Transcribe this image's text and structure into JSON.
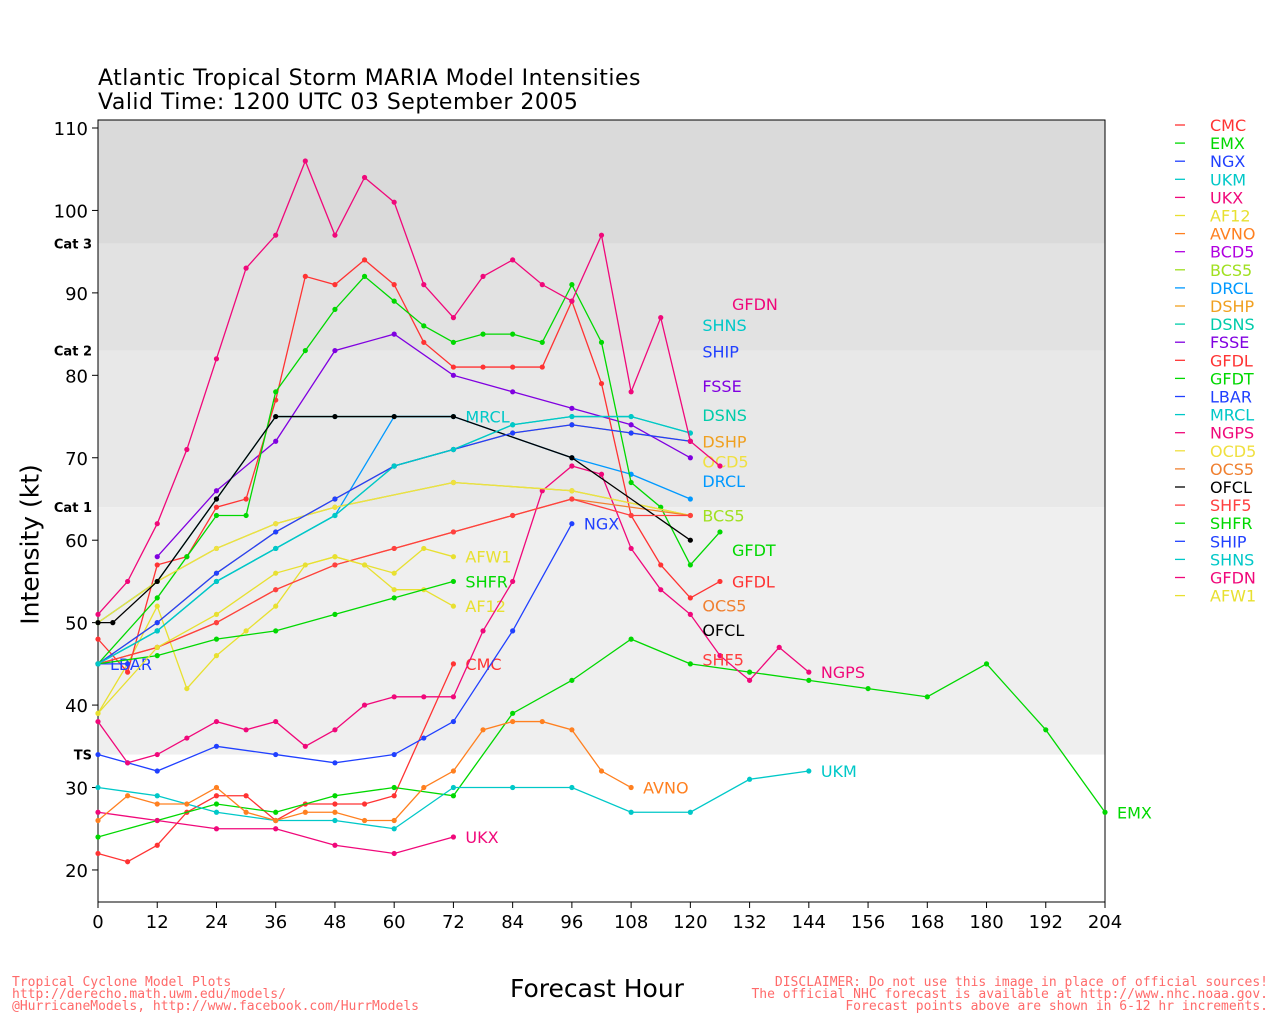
{
  "chart_data": {
    "type": "line",
    "title": "Atlantic Tropical Storm MARIA Model Intensities",
    "subtitle": "Valid Time: 1200 UTC 03 September 2005",
    "xlabel": "Forecast Hour",
    "ylabel": "Intensity (kt)",
    "xlim": [
      0,
      204
    ],
    "ylim": [
      16,
      110
    ],
    "xticks": [
      0,
      12,
      24,
      36,
      48,
      60,
      72,
      84,
      96,
      108,
      120,
      132,
      144,
      156,
      168,
      180,
      192,
      204
    ],
    "yticks": [
      20,
      30,
      40,
      50,
      60,
      70,
      80,
      90,
      100,
      110
    ],
    "category_bands": [
      {
        "label": "TS",
        "kt": 34
      },
      {
        "label": "Cat 1",
        "kt": 64
      },
      {
        "label": "Cat 2",
        "kt": 83
      },
      {
        "label": "Cat 3",
        "kt": 96
      }
    ],
    "series": [
      {
        "name": "CMC",
        "color": "#ff3333",
        "x": [
          0,
          6,
          12,
          18,
          24,
          30,
          36,
          42,
          48,
          54,
          60,
          72
        ],
        "y": [
          22,
          21,
          23,
          27,
          29,
          29,
          26,
          28,
          28,
          28,
          29,
          45
        ]
      },
      {
        "name": "EMX",
        "color": "#00d800",
        "x": [
          0,
          12,
          24,
          36,
          48,
          60,
          72,
          84,
          96,
          108,
          120,
          132,
          144,
          156,
          168,
          180,
          192,
          204
        ],
        "y": [
          24,
          26,
          28,
          27,
          29,
          30,
          29,
          39,
          43,
          48,
          45,
          44,
          43,
          42,
          41,
          45,
          37,
          27
        ]
      },
      {
        "name": "NGX",
        "color": "#2040ff",
        "x": [
          0,
          6,
          12,
          24,
          36,
          48,
          60,
          66,
          72,
          84,
          96
        ],
        "y": [
          34,
          33,
          32,
          35,
          34,
          33,
          34,
          36,
          38,
          49,
          62
        ]
      },
      {
        "name": "UKM",
        "color": "#00c8c8",
        "x": [
          0,
          12,
          24,
          36,
          48,
          60,
          72,
          84,
          96,
          108,
          120,
          132,
          144
        ],
        "y": [
          30,
          29,
          27,
          26,
          26,
          25,
          30,
          30,
          30,
          27,
          27,
          31,
          32
        ]
      },
      {
        "name": "UKX",
        "color": "#f0087a",
        "x": [
          0,
          12,
          24,
          36,
          48,
          60,
          72
        ],
        "y": [
          27,
          26,
          25,
          25,
          23,
          22,
          24
        ]
      },
      {
        "name": "AF12",
        "color": "#e8e030",
        "x": [
          0,
          6,
          12,
          18,
          24,
          30,
          36,
          42,
          48,
          54,
          60,
          66,
          72
        ],
        "y": [
          39,
          45,
          52,
          42,
          46,
          49,
          52,
          57,
          58,
          57,
          54,
          54,
          52
        ]
      },
      {
        "name": "AVNO",
        "color": "#ff8020",
        "x": [
          0,
          6,
          12,
          18,
          24,
          30,
          36,
          42,
          48,
          54,
          60,
          66,
          72,
          78,
          84,
          90,
          96,
          102,
          108
        ],
        "y": [
          26,
          29,
          28,
          28,
          30,
          27,
          26,
          27,
          27,
          26,
          26,
          30,
          32,
          37,
          38,
          38,
          37,
          32,
          30
        ]
      },
      {
        "name": "BCD5",
        "color": "#b000e0",
        "x": [],
        "y": []
      },
      {
        "name": "BCS5",
        "color": "#a0e020",
        "x": [
          0,
          12,
          24,
          36,
          48,
          72,
          96,
          120
        ],
        "y": [
          50,
          55,
          59,
          62,
          64,
          67,
          66,
          63
        ]
      },
      {
        "name": "DRCL",
        "color": "#0099ff",
        "x": [
          0,
          12,
          24,
          36,
          48,
          60,
          72,
          96,
          108,
          120
        ],
        "y": [
          45,
          49,
          55,
          59,
          63,
          75,
          75,
          70,
          68,
          65
        ]
      },
      {
        "name": "DSHP",
        "color": "#f0a020",
        "x": [
          0,
          12,
          24,
          36,
          48,
          60,
          72,
          84,
          96,
          108,
          120
        ],
        "y": [
          45,
          50,
          56,
          61,
          65,
          69,
          71,
          73,
          74,
          73,
          72
        ]
      },
      {
        "name": "DSNS",
        "color": "#00ccaa",
        "x": [
          0,
          12,
          24,
          36,
          48,
          60,
          72,
          84,
          96,
          108,
          120
        ],
        "y": [
          45,
          49,
          55,
          59,
          63,
          69,
          71,
          74,
          75,
          75,
          73
        ]
      },
      {
        "name": "FSSE",
        "color": "#8000e0",
        "x": [
          12,
          24,
          36,
          48,
          60,
          72,
          84,
          96,
          108,
          120
        ],
        "y": [
          58,
          66,
          72,
          83,
          85,
          80,
          78,
          76,
          74,
          70
        ]
      },
      {
        "name": "GFDL",
        "color": "#ff3333",
        "x": [
          0,
          6,
          12,
          18,
          24,
          30,
          36,
          42,
          48,
          54,
          60,
          66,
          72,
          78,
          84,
          90,
          96,
          102,
          108,
          114,
          120,
          126
        ],
        "y": [
          48,
          44,
          57,
          58,
          64,
          65,
          77,
          92,
          91,
          94,
          91,
          84,
          81,
          81,
          81,
          81,
          89,
          79,
          63,
          57,
          53,
          55
        ]
      },
      {
        "name": "GFDT",
        "color": "#00d800",
        "x": [
          0,
          12,
          18,
          24,
          30,
          36,
          42,
          48,
          54,
          60,
          66,
          72,
          78,
          84,
          90,
          96,
          102,
          108,
          114,
          120,
          126
        ],
        "y": [
          45,
          53,
          58,
          63,
          63,
          78,
          83,
          88,
          92,
          89,
          86,
          84,
          85,
          85,
          84,
          91,
          84,
          67,
          64,
          57,
          61
        ]
      },
      {
        "name": "LBAR",
        "color": "#2040ff",
        "x": [
          0,
          6
        ],
        "y": [
          45,
          45
        ]
      },
      {
        "name": "MRCL",
        "color": "#00c8c8",
        "x": [
          0,
          12,
          24,
          36,
          48,
          60,
          72
        ],
        "y": [
          50,
          55,
          65,
          75,
          75,
          75,
          75
        ]
      },
      {
        "name": "NGPS",
        "color": "#f0087a",
        "x": [
          0,
          6,
          12,
          18,
          24,
          30,
          36,
          42,
          48,
          54,
          60,
          66,
          72,
          78,
          84,
          90,
          96,
          102,
          108,
          114,
          120,
          126,
          132,
          138,
          144
        ],
        "y": [
          38,
          33,
          34,
          36,
          38,
          37,
          38,
          35,
          37,
          40,
          41,
          41,
          41,
          49,
          55,
          66,
          69,
          68,
          59,
          54,
          51,
          46,
          43,
          47,
          44
        ]
      },
      {
        "name": "OCD5",
        "color": "#f0e040",
        "x": [
          0,
          12,
          24,
          36,
          48,
          72,
          96,
          120
        ],
        "y": [
          50,
          55,
          59,
          62,
          64,
          67,
          66,
          63
        ]
      },
      {
        "name": "OCS5",
        "color": "#f08030",
        "x": [
          0,
          12,
          24,
          36,
          48,
          60,
          72,
          84,
          96,
          120
        ],
        "y": [
          45,
          47,
          50,
          54,
          57,
          59,
          61,
          63,
          65,
          63
        ]
      },
      {
        "name": "OFCL",
        "color": "#000000",
        "x": [
          0,
          3,
          12,
          24,
          36,
          48,
          60,
          72,
          96,
          120
        ],
        "y": [
          50,
          50,
          55,
          65,
          75,
          75,
          75,
          75,
          70,
          60
        ]
      },
      {
        "name": "SHF5",
        "color": "#ff4040",
        "x": [
          0,
          12,
          24,
          36,
          48,
          60,
          72,
          84,
          96,
          108,
          120
        ],
        "y": [
          45,
          47,
          50,
          54,
          57,
          59,
          61,
          63,
          65,
          63,
          63
        ]
      },
      {
        "name": "SHFR",
        "color": "#00d800",
        "x": [
          0,
          12,
          24,
          36,
          48,
          60,
          72
        ],
        "y": [
          45,
          46,
          48,
          49,
          51,
          53,
          55
        ]
      },
      {
        "name": "SHIP",
        "color": "#2040ff",
        "x": [
          0,
          12,
          24,
          36,
          48,
          60,
          72,
          84,
          96,
          108,
          120
        ],
        "y": [
          45,
          50,
          56,
          61,
          65,
          69,
          71,
          73,
          74,
          73,
          72
        ]
      },
      {
        "name": "SHNS",
        "color": "#00c8c8",
        "x": [
          0,
          12,
          24,
          36,
          48,
          60,
          72,
          84,
          96,
          108,
          120
        ],
        "y": [
          45,
          49,
          55,
          59,
          63,
          69,
          71,
          74,
          75,
          75,
          73
        ]
      },
      {
        "name": "GFDN",
        "color": "#f0087a",
        "x": [
          0,
          6,
          12,
          18,
          24,
          30,
          36,
          42,
          48,
          54,
          60,
          66,
          72,
          78,
          84,
          90,
          96,
          102,
          108,
          114,
          120,
          126
        ],
        "y": [
          51,
          55,
          62,
          71,
          82,
          93,
          97,
          106,
          97,
          104,
          101,
          91,
          87,
          92,
          94,
          91,
          89,
          97,
          78,
          87,
          72,
          69
        ]
      },
      {
        "name": "AFW1",
        "color": "#e8e030",
        "x": [
          0,
          12,
          24,
          36,
          48,
          54,
          60,
          66,
          72
        ],
        "y": [
          39,
          47,
          51,
          56,
          58,
          57,
          56,
          59,
          58
        ]
      }
    ]
  },
  "footer": {
    "left": [
      "Tropical Cyclone Model Plots",
      "http://derecho.math.uwm.edu/models/",
      "@HurricaneModels, http://www.facebook.com/HurrModels"
    ],
    "right": [
      "DISCLAIMER: Do not use this image in place of official sources!",
      "The official NHC forecast is available at http://www.nhc.noaa.gov.",
      "Forecast points above are shown in 6-12 hr increments."
    ]
  }
}
